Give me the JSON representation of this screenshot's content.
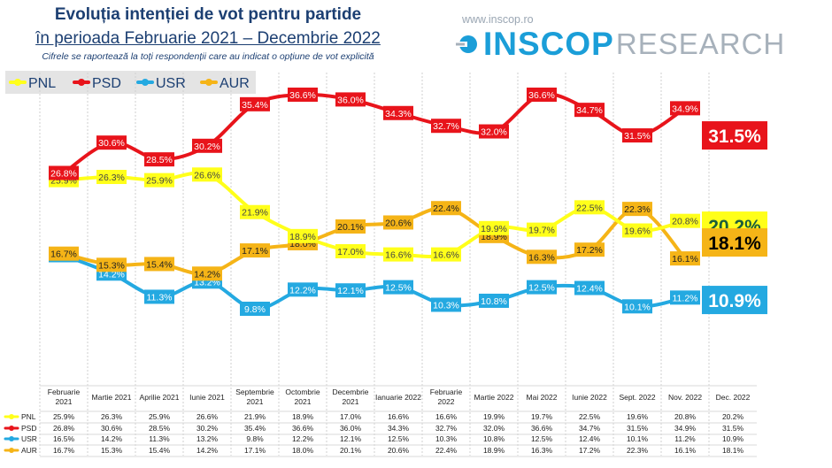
{
  "header": {
    "title": "Evoluția intenției de vot pentru partide",
    "subtitle": "în perioada Februarie 2021 – Decembrie 2022",
    "note": "Cifrele se raportează la toți respondenții care au indicat o opțiune de vot explicită"
  },
  "branding": {
    "url": "www.inscop.ro",
    "logo_main": "INSCOP",
    "logo_sub": "RESEARCH",
    "logo_color": "#1b9ed8"
  },
  "chart_data": {
    "type": "line",
    "categories": [
      "Februarie 2021",
      "Martie 2021",
      "Aprilie 2021",
      "Iunie 2021",
      "Septembrie 2021",
      "Octombrie 2021",
      "Decembrie 2021",
      "Ianuarie 2022",
      "Februarie 2022",
      "Martie 2022",
      "Mai 2022",
      "Iunie 2022",
      "Sept. 2022",
      "Nov. 2022",
      "Dec. 2022"
    ],
    "series": [
      {
        "name": "PNL",
        "color": "#ffff1a",
        "values": [
          25.9,
          26.3,
          25.9,
          26.6,
          21.9,
          18.9,
          17.0,
          16.6,
          16.6,
          19.9,
          19.7,
          22.5,
          19.6,
          20.8,
          20.2
        ]
      },
      {
        "name": "PSD",
        "color": "#e8141b",
        "values": [
          26.8,
          30.6,
          28.5,
          30.2,
          35.4,
          36.6,
          36.0,
          34.3,
          32.7,
          32.0,
          36.6,
          34.7,
          31.5,
          34.9,
          31.5
        ]
      },
      {
        "name": "USR",
        "color": "#24a9e1",
        "values": [
          16.5,
          14.2,
          11.3,
          13.2,
          9.8,
          12.2,
          12.1,
          12.5,
          10.3,
          10.8,
          12.5,
          12.4,
          10.1,
          11.2,
          10.9
        ]
      },
      {
        "name": "AUR",
        "color": "#f5b417",
        "values": [
          16.7,
          15.3,
          15.4,
          14.2,
          17.1,
          18.0,
          20.1,
          20.6,
          22.4,
          18.9,
          16.3,
          17.2,
          22.3,
          16.1,
          18.1
        ]
      }
    ],
    "legend": {
      "position": "top-left"
    },
    "grid": "vertical dashed separators",
    "table": true
  }
}
